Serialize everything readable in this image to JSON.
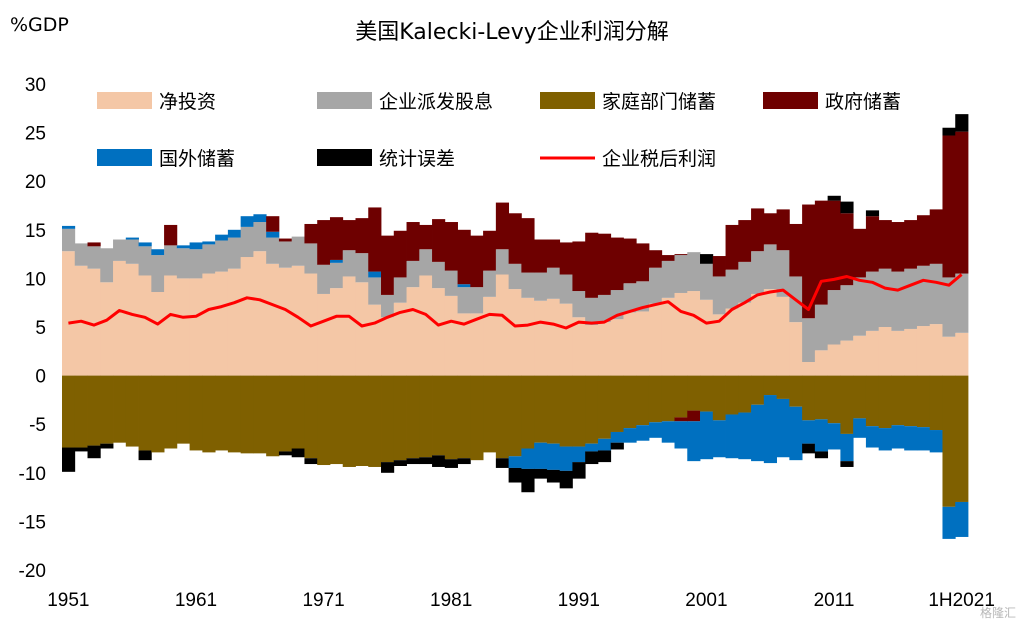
{
  "header": {
    "title": "美国Kalecki-Levy企业利润分解",
    "unit": "%GDP",
    "watermark": "格隆汇"
  },
  "chart_data": {
    "type": "bar",
    "title": "美国Kalecki-Levy企业利润分解",
    "ylabel": "%GDP",
    "xlabel": "",
    "ylim": [
      -20,
      30
    ],
    "yticks": [
      30,
      25,
      20,
      15,
      10,
      5,
      0,
      -5,
      -10,
      -15,
      -20
    ],
    "xticks": [
      "1951",
      "1961",
      "1971",
      "1981",
      "1991",
      "2001",
      "2011",
      "1H2021"
    ],
    "xtick_index": [
      0,
      10,
      20,
      30,
      40,
      50,
      60,
      70
    ],
    "legend_position": "top-left",
    "grid": false,
    "series": [
      {
        "name": "净投资",
        "color": "#F4C7A6",
        "values": [
          12.8,
          11.3,
          11.0,
          9.6,
          11.8,
          11.5,
          10.3,
          8.6,
          10.3,
          10.0,
          10.0,
          10.5,
          10.7,
          11.0,
          12.2,
          12.8,
          11.5,
          11.1,
          11.3,
          10.5,
          8.4,
          9.0,
          10.2,
          9.6,
          7.3,
          6.0,
          7.5,
          9.1,
          10.3,
          9.0,
          8.2,
          6.4,
          6.4,
          8.1,
          10.4,
          8.9,
          8.0,
          7.7,
          7.9,
          7.4,
          6.0,
          5.2,
          5.5,
          5.8,
          6.5,
          6.6,
          7.4,
          8.0,
          8.5,
          8.7,
          7.8,
          6.3,
          6.9,
          7.5,
          8.4,
          8.9,
          8.1,
          5.5,
          1.4,
          2.6,
          3.2,
          3.6,
          4.1,
          4.6,
          5.0,
          4.6,
          4.8,
          5.1,
          5.3,
          4.0,
          4.4
        ]
      },
      {
        "name": "企业派发股息",
        "color": "#A6A6A6",
        "values": [
          2.3,
          2.3,
          2.3,
          3.5,
          2.2,
          2.5,
          3.0,
          3.8,
          3.1,
          3.1,
          3.0,
          3.0,
          3.2,
          3.2,
          3.1,
          3.0,
          2.7,
          2.7,
          3.0,
          3.1,
          3.0,
          2.6,
          2.7,
          3.0,
          2.8,
          2.3,
          2.6,
          2.7,
          2.7,
          2.7,
          2.6,
          2.7,
          2.7,
          2.7,
          2.6,
          2.6,
          2.6,
          2.9,
          3.2,
          3.0,
          2.7,
          2.8,
          2.8,
          3.0,
          3.0,
          3.1,
          3.7,
          3.8,
          3.9,
          4.0,
          3.7,
          3.9,
          4.0,
          4.2,
          4.4,
          4.6,
          4.8,
          4.7,
          4.5,
          4.7,
          5.6,
          5.7,
          6.0,
          6.1,
          6.0,
          6.1,
          6.2,
          6.2,
          6.2,
          6.1,
          6.1
        ]
      },
      {
        "name": "家庭部门储蓄",
        "color": "#7F6000",
        "values": [
          -7.4,
          -7.4,
          -7.2,
          -7.0,
          -6.9,
          -7.3,
          -7.7,
          -7.9,
          -7.5,
          -7.0,
          -7.7,
          -7.9,
          -7.7,
          -7.9,
          -8.0,
          -8.0,
          -8.3,
          -7.8,
          -7.5,
          -8.5,
          -9.2,
          -9.1,
          -9.4,
          -9.3,
          -9.4,
          -8.9,
          -8.7,
          -8.5,
          -8.4,
          -8.2,
          -8.6,
          -8.5,
          -8.7,
          -7.9,
          -8.5,
          -8.3,
          -7.5,
          -6.9,
          -7.0,
          -7.3,
          -7.3,
          -7.0,
          -6.5,
          -5.8,
          -5.4,
          -5.1,
          -4.8,
          -4.7,
          -4.3,
          -3.6,
          -3.7,
          -4.6,
          -4.0,
          -3.8,
          -3.0,
          -2.0,
          -2.4,
          -3.2,
          -4.6,
          -4.5,
          -4.9,
          -6.0,
          -4.4,
          -5.2,
          -5.4,
          -5.1,
          -5.2,
          -5.3,
          -5.6,
          -13.5,
          -13.0
        ]
      },
      {
        "name": "政府储蓄",
        "color": "#6E0000",
        "values": [
          0,
          0,
          0.4,
          0,
          0,
          0,
          0,
          0,
          2.1,
          0,
          0,
          0,
          0,
          0,
          0,
          0,
          1.6,
          0.3,
          0,
          2.0,
          4.6,
          4.4,
          3.1,
          3.6,
          6.6,
          6.1,
          4.8,
          4.0,
          2.5,
          4.4,
          5.0,
          5.6,
          5.3,
          4.1,
          4.8,
          5.2,
          5.6,
          3.4,
          2.9,
          3.3,
          5.1,
          6.7,
          6.3,
          5.4,
          4.6,
          3.9,
          1.8,
          0.6,
          0.1,
          0,
          0,
          2.1,
          4.6,
          4.3,
          4.4,
          3.2,
          4.2,
          5.4,
          11.7,
          10.7,
          9.2,
          7.4,
          5.0,
          5.7,
          5.0,
          5.1,
          5.0,
          5.2,
          5.6,
          14.6,
          14.6
        ]
      },
      {
        "name": "国外储蓄",
        "color": "#0070C0",
        "values": [
          0.3,
          0,
          0,
          0,
          0,
          0.2,
          0.4,
          0.6,
          0,
          0.3,
          0.7,
          0.3,
          0.6,
          0.8,
          1.1,
          0.8,
          0.6,
          0,
          0,
          0,
          0,
          0.3,
          0,
          0,
          0.6,
          0,
          0,
          0,
          0,
          0,
          0,
          0.3,
          0,
          0,
          0,
          0,
          0,
          0,
          0,
          0,
          0,
          0,
          0,
          0,
          0,
          0,
          0,
          0,
          0,
          0,
          0,
          0,
          0,
          0,
          0,
          0,
          0,
          0,
          0,
          0,
          0,
          0,
          0,
          0,
          0,
          0,
          0,
          0,
          0,
          0,
          0
        ]
      },
      {
        "name": "统计误差",
        "color": "#000000",
        "values": [
          0,
          0,
          0,
          0,
          0,
          0,
          0,
          0,
          0,
          0,
          0,
          0,
          0,
          0,
          0,
          0,
          0,
          0,
          0,
          0,
          0,
          0,
          0,
          0,
          0,
          0,
          0,
          0,
          0,
          0,
          0,
          0,
          0,
          0,
          0,
          0,
          0,
          0,
          0,
          0,
          0,
          0,
          0,
          0,
          0,
          0,
          0,
          0,
          0.2,
          0.7,
          0,
          0,
          0,
          0,
          0,
          0,
          0,
          0,
          0,
          0,
          0,
          0,
          0,
          0,
          0,
          0,
          0,
          0,
          0,
          0,
          0
        ]
      },
      {
        "name": "企业税后利润",
        "color": "#FF0000",
        "type": "line",
        "values": [
          5.4,
          5.6,
          5.2,
          5.7,
          6.7,
          6.3,
          6.0,
          5.3,
          6.3,
          6.0,
          6.1,
          6.8,
          7.1,
          7.5,
          8.0,
          7.8,
          7.3,
          6.8,
          6.0,
          5.1,
          5.6,
          6.1,
          6.1,
          5.1,
          5.4,
          6.0,
          6.5,
          6.8,
          6.3,
          5.2,
          5.6,
          5.3,
          5.8,
          6.3,
          6.2,
          5.1,
          5.2,
          5.5,
          5.3,
          4.9,
          5.5,
          5.4,
          5.5,
          6.2,
          6.6,
          7.0,
          7.3,
          7.6,
          6.6,
          6.2,
          5.4,
          5.6,
          6.8,
          7.5,
          8.3,
          8.6,
          8.8,
          7.8,
          6.8,
          9.7,
          9.9,
          10.2,
          9.8,
          9.6,
          9.0,
          8.8,
          9.3,
          9.8,
          9.6,
          9.3,
          10.4
        ]
      }
    ],
    "negative_extras": {
      "国外储蓄": [
        0,
        0,
        0,
        0,
        0,
        0,
        0,
        0,
        0,
        0,
        0,
        0,
        0,
        0,
        0,
        0,
        0,
        0,
        0,
        0,
        0,
        0,
        0,
        0,
        0,
        0,
        0,
        0,
        0,
        0,
        0,
        0,
        0,
        0,
        0,
        1.2,
        2.1,
        2.7,
        2.7,
        2.5,
        1.6,
        0.8,
        1.2,
        1.1,
        1.5,
        1.6,
        1.6,
        2.2,
        2.8,
        4.1,
        4.9,
        3.8,
        4.5,
        4.8,
        5.8,
        7.0,
        6.0,
        5.5,
        2.4,
        3.3,
        2.7,
        2.8,
        2.0,
        2.2,
        2.3,
        2.4,
        2.5,
        2.4,
        2.3,
        3.3,
        3.6
      ],
      "统计误差": [
        2.5,
        0.4,
        1.3,
        0.5,
        0,
        0,
        1.0,
        0,
        0,
        0,
        0,
        0,
        0,
        0,
        0,
        0,
        0,
        0.4,
        0.9,
        0.6,
        0,
        0,
        0,
        0,
        0,
        1.1,
        0.6,
        0.6,
        0.7,
        1.2,
        0.9,
        0.6,
        0,
        0,
        1.0,
        1.5,
        2.4,
        1.0,
        1.3,
        1.8,
        1.7,
        1.3,
        1.2,
        0.7,
        0,
        0,
        0,
        0,
        0,
        0,
        0,
        0,
        0,
        0,
        0,
        0,
        0,
        0,
        1.0,
        0.7,
        0,
        0.6,
        0,
        0,
        0,
        0,
        0,
        0,
        0,
        0,
        0
      ],
      "政府储蓄": [
        0,
        0,
        0,
        0,
        0,
        0,
        0,
        0,
        0,
        0,
        0,
        0,
        0,
        0,
        0,
        0,
        0,
        0,
        0,
        0,
        0,
        0,
        0,
        0,
        0,
        0,
        0,
        0,
        0,
        0,
        0,
        0,
        0,
        0,
        0,
        0,
        0,
        0,
        0,
        0,
        0,
        0,
        0,
        0,
        0,
        0,
        0,
        0,
        0.4,
        1.1,
        0,
        0,
        0,
        0,
        0,
        0,
        0,
        0,
        0,
        0,
        0,
        0,
        0,
        0,
        0,
        0,
        0,
        0,
        0,
        0,
        0
      ]
    },
    "positive_extras": {
      "统计误差": [
        0,
        0,
        0,
        0,
        0,
        0,
        0,
        0,
        0,
        0,
        0,
        0,
        0,
        0,
        0,
        0,
        0,
        0,
        0,
        0,
        0,
        0,
        0,
        0,
        0,
        0,
        0,
        0,
        0,
        0,
        0,
        0,
        0,
        0,
        0,
        0,
        0,
        0,
        0,
        0,
        0,
        0,
        0,
        0,
        0,
        0,
        0,
        0,
        0,
        0,
        1.0,
        0,
        0,
        0,
        0,
        0,
        0,
        0,
        0,
        0,
        0.5,
        1.2,
        0,
        0.6,
        0,
        0,
        0,
        0,
        0,
        0.8,
        1.8
      ]
    }
  }
}
